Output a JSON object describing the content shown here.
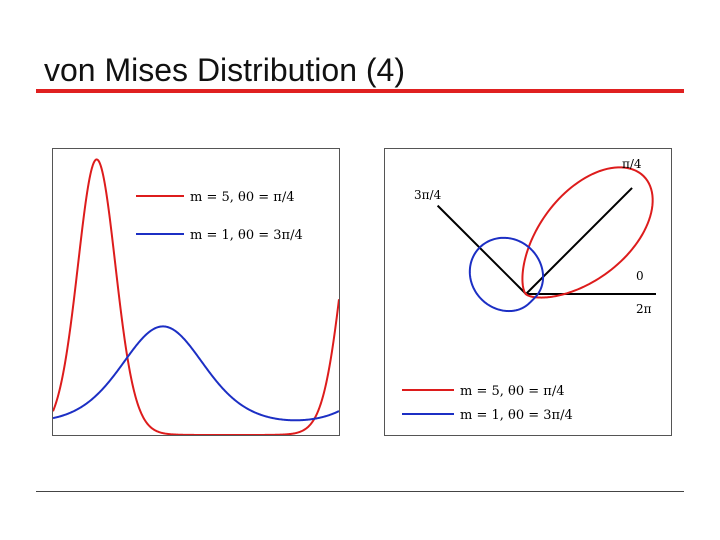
{
  "slide": {
    "title": "von Mises Distribution (4)"
  },
  "colors": {
    "title_rule": "#e02020",
    "bottom_rule": "#444444",
    "frame": "#555555",
    "axis": "#000000"
  },
  "chart_data": [
    {
      "type": "line",
      "title": "",
      "xlabel": "",
      "ylabel": "",
      "xlim": [
        -0.25,
        6.53
      ],
      "ylim": [
        0,
        0.9
      ],
      "show_ticks": false,
      "grid": false,
      "legend": {
        "placement": "top-right"
      },
      "series": [
        {
          "name": "m = 5, θ0 = π/4",
          "color": "#dd1c1c",
          "kappa": 5,
          "mu": 0.7854
        },
        {
          "name": "m = 1, θ0 = 3π/4",
          "color": "#1c2fc4",
          "kappa": 1,
          "mu": 2.3562
        }
      ]
    },
    {
      "type": "polar",
      "title": "",
      "scale": 0.8,
      "show_ticks": false,
      "grid": false,
      "legend": {
        "placement": "bottom-right"
      },
      "angle_labels": [
        {
          "label": "π/4",
          "angle": "pi/4"
        },
        {
          "label": "3π/4",
          "angle": "3pi/4"
        },
        {
          "label": "0",
          "angle": "0"
        },
        {
          "label": "2π",
          "angle": "2pi"
        }
      ],
      "series": [
        {
          "name": "m = 5, θ0 = π/4",
          "color": "#dd1c1c",
          "kappa": 5,
          "mu": 0.7854
        },
        {
          "name": "m = 1, θ0 = 3π/4",
          "color": "#1c2fc4",
          "kappa": 1,
          "mu": 2.3562
        }
      ]
    }
  ]
}
